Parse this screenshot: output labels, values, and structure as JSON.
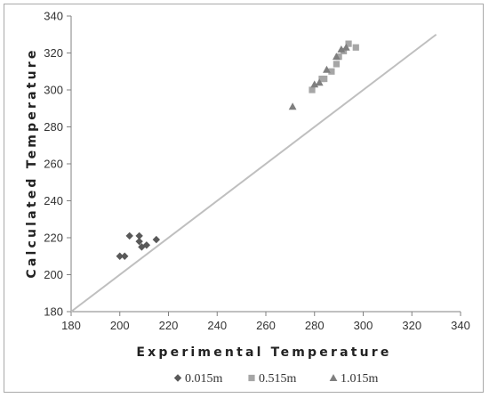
{
  "chart_data": {
    "type": "scatter",
    "xlabel": "Experimental Temperature",
    "ylabel": "Calculated Temperature",
    "xlim": [
      180,
      340
    ],
    "ylim": [
      180,
      340
    ],
    "xticks": [
      "180",
      "200",
      "220",
      "240",
      "260",
      "280",
      "300",
      "320",
      "340"
    ],
    "yticks": [
      "180",
      "200",
      "220",
      "240",
      "260",
      "280",
      "300",
      "320",
      "340"
    ],
    "grid": false,
    "legend": "bottom",
    "reference_line": {
      "x": [
        180,
        330
      ],
      "y": [
        180,
        330
      ],
      "color": "#bfbfbf"
    },
    "series": [
      {
        "name": "0.015m",
        "marker": "diamond",
        "color": "#595959",
        "points": [
          [
            200,
            210
          ],
          [
            202,
            210
          ],
          [
            204,
            221
          ],
          [
            208,
            221
          ],
          [
            208,
            218
          ],
          [
            209,
            215
          ],
          [
            211,
            216
          ],
          [
            215,
            219
          ]
        ]
      },
      {
        "name": "0.515m",
        "marker": "square",
        "color": "#a6a6a6",
        "points": [
          [
            279,
            300
          ],
          [
            283,
            306
          ],
          [
            284,
            306
          ],
          [
            287,
            310
          ],
          [
            289,
            314
          ],
          [
            290,
            318
          ],
          [
            292,
            321
          ],
          [
            294,
            325
          ],
          [
            297,
            323
          ]
        ]
      },
      {
        "name": "1.015m",
        "marker": "triangle",
        "color": "#7f7f7f",
        "points": [
          [
            271,
            291
          ],
          [
            280,
            303
          ],
          [
            282,
            304
          ],
          [
            285,
            311
          ],
          [
            289,
            318
          ],
          [
            291,
            322
          ],
          [
            293,
            323
          ]
        ]
      }
    ]
  }
}
